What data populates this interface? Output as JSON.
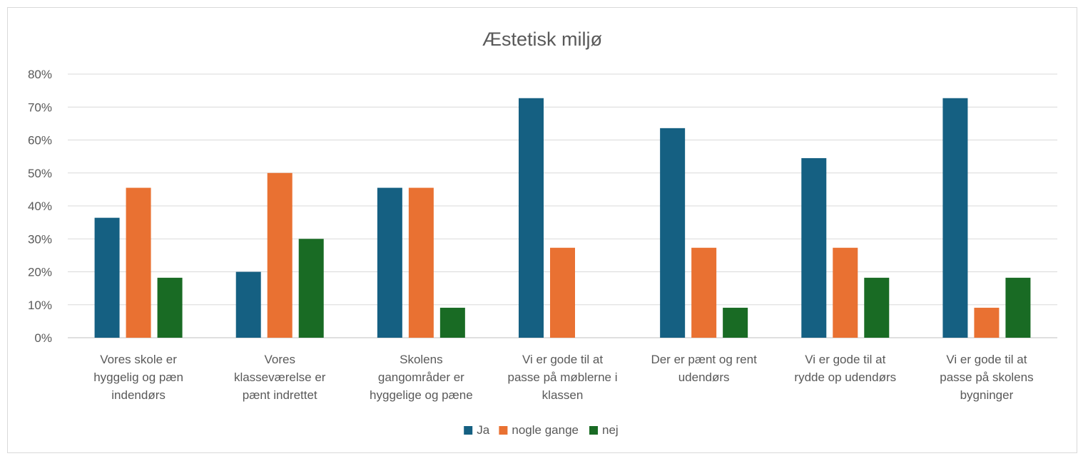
{
  "chart_data": {
    "type": "bar",
    "title": "Æstetisk miljø",
    "xlabel": "",
    "ylabel": "",
    "ylim": [
      0,
      80
    ],
    "y_tick_step": 10,
    "y_tick_labels": [
      "0%",
      "10%",
      "20%",
      "30%",
      "40%",
      "50%",
      "60%",
      "70%",
      "80%"
    ],
    "grid": true,
    "legend_position": "bottom",
    "categories": [
      "Vores skole er hyggelig og pæn indendørs",
      "Vores klasseværelse er pænt indrettet",
      "Skolens gangområder er hyggelige og pæne",
      "Vi er gode til at passe på møblerne i klassen",
      "Der er pænt og rent udendørs",
      "Vi er gode til at rydde op udendørs",
      "Vi er gode til at passe på skolens bygninger"
    ],
    "category_label_lines": [
      [
        "Vores skole er",
        "hyggelig og pæn",
        "indendørs"
      ],
      [
        "Vores",
        "klasseværelse er",
        "pænt indrettet"
      ],
      [
        "Skolens",
        "gangområder er",
        "hyggelige og pæne"
      ],
      [
        "Vi er gode til at",
        "passe på møblerne i",
        "klassen"
      ],
      [
        "Der er pænt og rent",
        "udendørs"
      ],
      [
        "Vi er gode til at",
        "rydde op udendørs"
      ],
      [
        "Vi er gode til at",
        "passe på skolens",
        "bygninger"
      ]
    ],
    "series": [
      {
        "name": "Ja",
        "color": "#156082",
        "values": [
          36.4,
          20.0,
          45.5,
          72.7,
          63.6,
          54.5,
          72.7
        ]
      },
      {
        "name": "nogle gange",
        "color": "#E97132",
        "values": [
          45.5,
          50.0,
          45.5,
          27.3,
          27.3,
          27.3,
          9.1
        ]
      },
      {
        "name": "nej",
        "color": "#196B24",
        "values": [
          18.2,
          30.0,
          9.1,
          0,
          9.1,
          18.2,
          18.2
        ]
      }
    ]
  }
}
